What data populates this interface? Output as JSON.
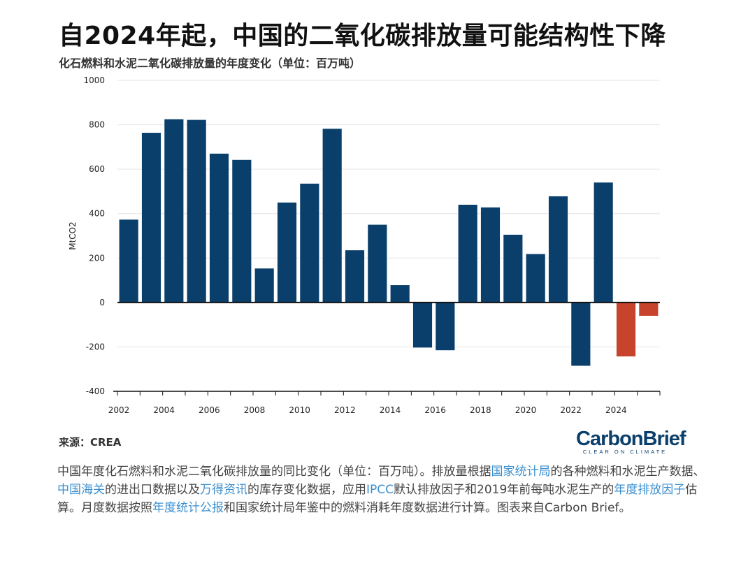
{
  "title": "自2024年起，中国的二氧化碳排放量可能结构性下降",
  "subtitle": "化石燃料和水泥二氧化碳排放量的年度变化（单位：百万吨）",
  "source": "来源：CREA",
  "logo": {
    "main": "CarbonBrief",
    "tagline": "CLEAR ON CLIMATE"
  },
  "colors": {
    "bar_positive": "#0a3f6b",
    "bar_projection": "#c8432b",
    "axis": "#111111",
    "grid": "#e6e6e6"
  },
  "chart_data": {
    "type": "bar",
    "ylabel": "MtCO2",
    "xlabel": "",
    "ylim": [
      -400,
      1000
    ],
    "yticks": [
      -400,
      -200,
      0,
      200,
      400,
      600,
      800,
      1000
    ],
    "xticks": [
      "2002",
      "2004",
      "2006",
      "2008",
      "2010",
      "2012",
      "2014",
      "2016",
      "2018",
      "2020",
      "2022",
      "2024"
    ],
    "grid": true,
    "categories": [
      "2002",
      "2003",
      "2004",
      "2005",
      "2006",
      "2007",
      "2008",
      "2009",
      "2010",
      "2011",
      "2012",
      "2013",
      "2014",
      "2015",
      "2016",
      "2017",
      "2018",
      "2019",
      "2020",
      "2021",
      "2022",
      "2023",
      "2024",
      "2025"
    ],
    "values": [
      373,
      764,
      825,
      822,
      670,
      642,
      153,
      450,
      535,
      782,
      235,
      350,
      78,
      -203,
      -215,
      440,
      428,
      305,
      218,
      478,
      -285,
      540,
      -243,
      -60
    ],
    "projection_from": "2024"
  },
  "description": [
    {
      "text": "中国年度化石燃料和水泥二氧化碳排放量的同比变化（单位：百万吨）。排放量根据"
    },
    {
      "text": "国家统计局",
      "link": true
    },
    {
      "text": "的各种燃料和水泥生产数据、"
    },
    {
      "text": "中国海关",
      "link": true
    },
    {
      "text": "的进出口数据以及"
    },
    {
      "text": "万得资讯",
      "link": true
    },
    {
      "text": "的库存变化数据，应用"
    },
    {
      "text": "IPCC",
      "link": true
    },
    {
      "text": "默认排放因子和2019年前每吨水泥生产的"
    },
    {
      "text": "年度排放因子",
      "link": true
    },
    {
      "text": "估算。月度数据按照"
    },
    {
      "text": "年度统计公报",
      "link": true
    },
    {
      "text": "和国家统计局年鉴中的燃料消耗年度数据进行计算。图表来自Carbon Brief。"
    }
  ]
}
